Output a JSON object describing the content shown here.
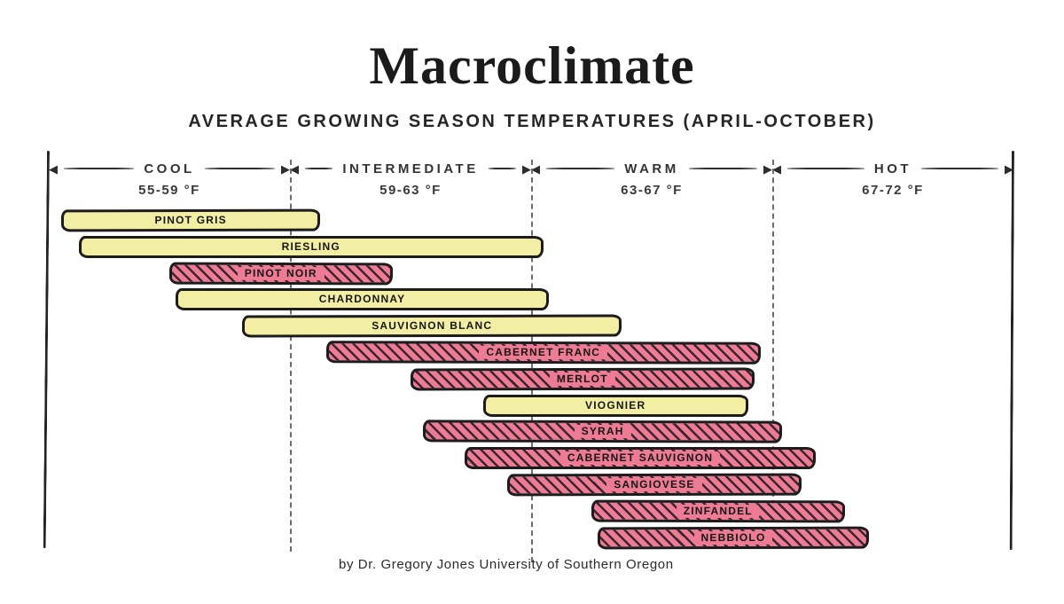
{
  "title": "Macroclimate",
  "subtitle": "AVERAGE GROWING SEASON TEMPERATURES (APRIL-OCTOBER)",
  "footer": "by Dr. Gregory Jones University of Southern Oregon",
  "colors": {
    "bar_yellow": "#f2efa4",
    "bar_pink": "#ec7b93",
    "hatch_ink": "#3a2430",
    "outline_ink": "#1d1b1c",
    "text_ink": "#242424"
  },
  "chart_data": {
    "type": "bar",
    "orientation": "horizontal-range",
    "title": "Macroclimate",
    "subtitle": "AVERAGE GROWING SEASON TEMPERATURES (APRIL-OCTOBER)",
    "x_unit": "°F",
    "xlim": [
      55,
      72
    ],
    "grid": "dashed-zone-boundaries",
    "zones": [
      {
        "label": "COOL",
        "range_label": "55-59 °F",
        "t_min": 55,
        "t_max": 59
      },
      {
        "label": "INTERMEDIATE",
        "range_label": "59-63 °F",
        "t_min": 59,
        "t_max": 63
      },
      {
        "label": "WARM",
        "range_label": "63-67 °F",
        "t_min": 63,
        "t_max": 67
      },
      {
        "label": "HOT",
        "range_label": "67-72 °F",
        "t_min": 67,
        "t_max": 72
      }
    ],
    "series": [
      {
        "label": "PINOT GRIS",
        "t_min": 55.2,
        "t_max": 59.5,
        "fill": "yellow"
      },
      {
        "label": "RIESLING",
        "t_min": 55.5,
        "t_max": 63.2,
        "fill": "yellow"
      },
      {
        "label": "PINOT NOIR",
        "t_min": 57.0,
        "t_max": 60.7,
        "fill": "pink-hatched"
      },
      {
        "label": "CHARDONNAY",
        "t_min": 57.1,
        "t_max": 63.3,
        "fill": "yellow"
      },
      {
        "label": "SAUVIGNON BLANC",
        "t_min": 58.2,
        "t_max": 64.5,
        "fill": "yellow"
      },
      {
        "label": "CABERNET FRANC",
        "t_min": 59.6,
        "t_max": 66.8,
        "fill": "pink-hatched"
      },
      {
        "label": "MERLOT",
        "t_min": 61.0,
        "t_max": 66.7,
        "fill": "pink-hatched"
      },
      {
        "label": "VIOGNIER",
        "t_min": 62.2,
        "t_max": 66.6,
        "fill": "yellow"
      },
      {
        "label": "SYRAH",
        "t_min": 61.2,
        "t_max": 67.2,
        "fill": "pink-hatched"
      },
      {
        "label": "CABERNET SAUVIGNON",
        "t_min": 61.9,
        "t_max": 67.9,
        "fill": "pink-hatched"
      },
      {
        "label": "SANGIOVESE",
        "t_min": 62.6,
        "t_max": 67.6,
        "fill": "pink-hatched"
      },
      {
        "label": "ZINFANDEL",
        "t_min": 64.0,
        "t_max": 68.5,
        "fill": "pink-hatched"
      },
      {
        "label": "NEBBIOLO",
        "t_min": 64.1,
        "t_max": 69.0,
        "fill": "pink-hatched"
      }
    ]
  }
}
